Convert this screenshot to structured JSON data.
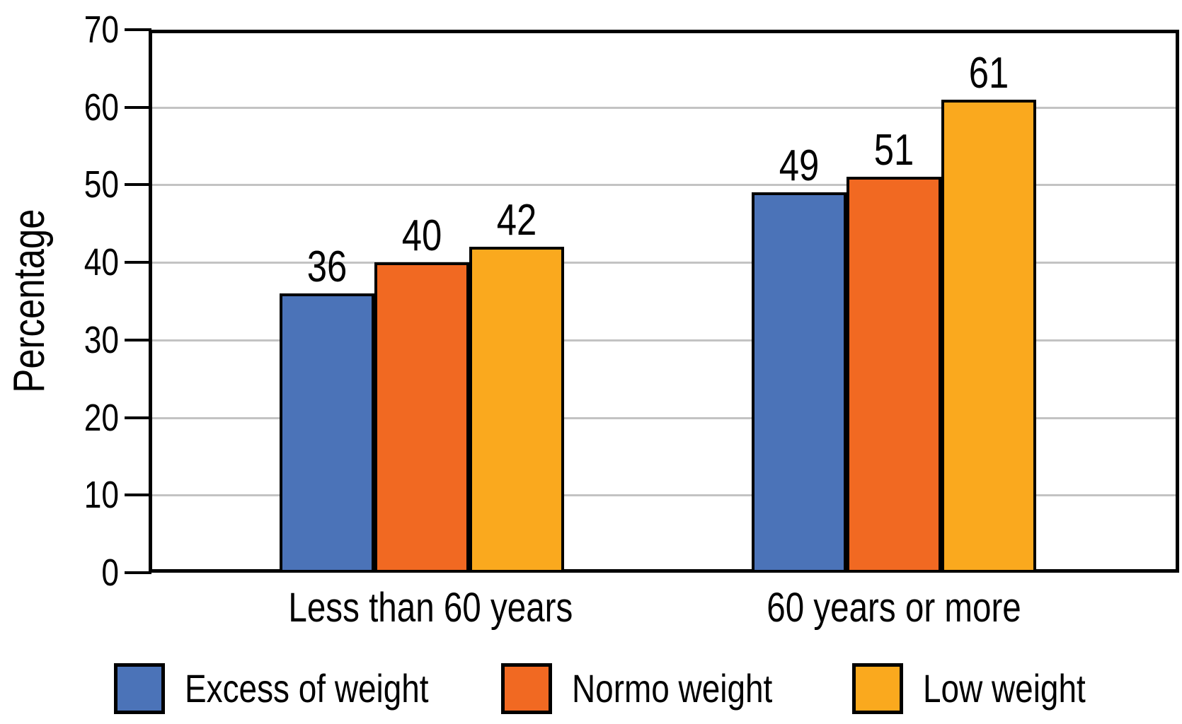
{
  "chart_data": {
    "type": "bar",
    "title": "",
    "ylabel": "Percentage",
    "xlabel": "",
    "ylim": [
      0,
      70
    ],
    "yticks": [
      0,
      10,
      20,
      30,
      40,
      50,
      60,
      70
    ],
    "grid": true,
    "gridline_color": "#c3c3c3",
    "bar_border_color": "#000000",
    "bar_value_labels": true,
    "legend_position": "bottom",
    "categories": [
      "Less than 60 years",
      "60 years or more"
    ],
    "series": [
      {
        "name": "Excess of weight",
        "color": "#4b73b8",
        "values": [
          36,
          49
        ]
      },
      {
        "name": "Normo weight",
        "color": "#f16922",
        "values": [
          40,
          51
        ]
      },
      {
        "name": "Low weight",
        "color": "#faa91e",
        "values": [
          42,
          61
        ]
      }
    ]
  }
}
